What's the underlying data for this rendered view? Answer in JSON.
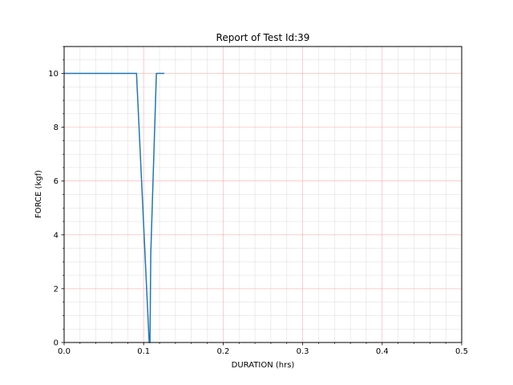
{
  "chart_data": {
    "type": "line",
    "title": "Report of Test Id:39",
    "xlabel": "DURATION (hrs)",
    "ylabel": "FORCE (kgf)",
    "xlim": [
      0,
      0.5
    ],
    "ylim": [
      0,
      11
    ],
    "x_ticks": [
      "0.0",
      "0.1",
      "0.2",
      "0.3",
      "0.4",
      "0.5"
    ],
    "y_ticks": [
      "0",
      "2",
      "4",
      "6",
      "8",
      "10"
    ],
    "grid": {
      "major": true,
      "minor": true,
      "major_color": "#ff9999",
      "minor_color": "#cccccc"
    },
    "series": [
      {
        "color": "#1f77b4",
        "x": [
          0.0,
          0.091,
          0.107,
          0.108,
          0.109,
          0.116,
          0.126
        ],
        "y": [
          10,
          10,
          0,
          0,
          3.3,
          10,
          10
        ]
      }
    ]
  }
}
